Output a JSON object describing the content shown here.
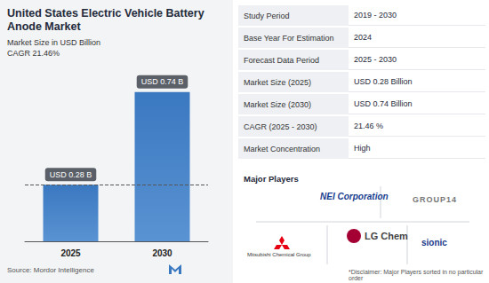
{
  "chart_data": {
    "type": "bar",
    "title": "United States Electric Vehicle Battery Anode Market",
    "subtitle": "Market Size in USD Billion",
    "annotation": "CAGR 21.46%",
    "categories": [
      "2025",
      "2030"
    ],
    "values": [
      0.28,
      0.74
    ],
    "value_labels": [
      "USD 0.28 B",
      "USD 0.74 B"
    ],
    "color": "#3a78c0",
    "ylim": [
      0,
      0.8
    ],
    "yticks": [
      0,
      0.8
    ],
    "grid": false,
    "data_labels": true,
    "tick_labels": "x",
    "source": "Source: Mordor Intelligence"
  },
  "table": {
    "rows": [
      [
        "Study Period",
        "2019 - 2030"
      ],
      [
        "Base Year For Estimation",
        "2024"
      ],
      [
        "Forecast Data Period",
        "2025 - 2030"
      ],
      [
        "Market Size (2025)",
        "USD 0.28 Billion"
      ],
      [
        "Market Size (2030)",
        "USD 0.74 Billion"
      ],
      [
        "CAGR (2025 - 2030)",
        "21.46 %"
      ],
      [
        "Market Concentration",
        "High"
      ]
    ]
  },
  "major_players": {
    "title": "Major Players",
    "players": [
      "NEI Corporation",
      "GROUP14",
      "Mitsubishi Chemical Group",
      "LG Chem",
      "sionic"
    ],
    "disclaimer": "*Disclaimer: Major Players sorted in no particular order"
  }
}
